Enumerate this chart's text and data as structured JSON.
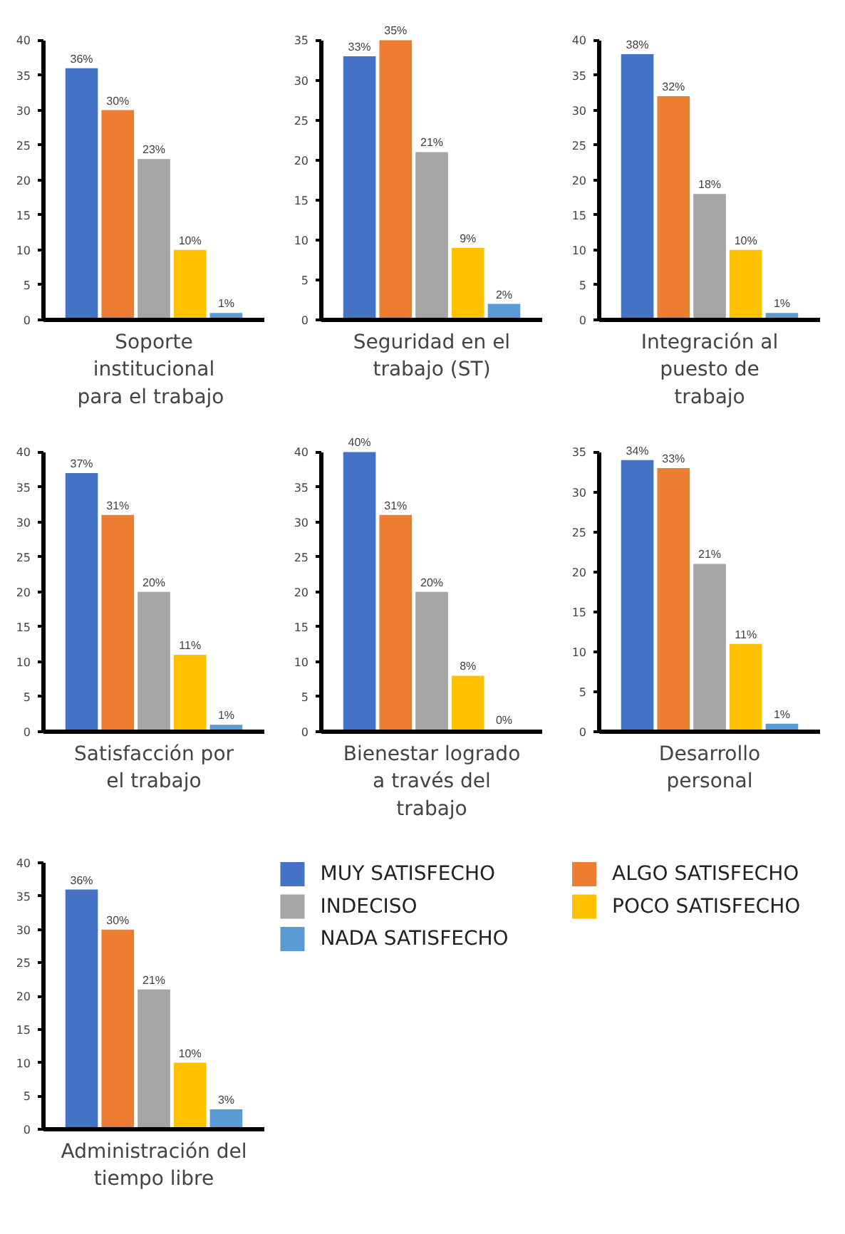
{
  "chart_data": [
    {
      "type": "bar",
      "xlabel": "Soporte\ninstitucional\npara  el trabajo",
      "categories": [
        null
      ],
      "ylim": [
        0,
        40
      ],
      "yticks": [
        0,
        5,
        10,
        15,
        20,
        25,
        30,
        35,
        40
      ],
      "legend": false,
      "series": [
        {
          "color": "#4472c4",
          "values": [
            36
          ],
          "value_labels": [
            "36%"
          ]
        },
        {
          "color": "#ed7d31",
          "values": [
            30
          ],
          "value_labels": [
            "30%"
          ]
        },
        {
          "color": "#a5a5a5",
          "values": [
            23
          ],
          "value_labels": [
            "23%"
          ]
        },
        {
          "color": "#ffc000",
          "values": [
            10
          ],
          "value_labels": [
            "10%"
          ]
        },
        {
          "color": "#5b9bd5",
          "values": [
            1
          ],
          "value_labels": [
            "1%"
          ]
        }
      ]
    },
    {
      "type": "bar",
      "xlabel": "Seguridad en el\ntrabajo (ST)",
      "categories": [
        null
      ],
      "ylim": [
        0,
        35
      ],
      "yticks": [
        0,
        5,
        10,
        15,
        20,
        25,
        30,
        35
      ],
      "legend": false,
      "series": [
        {
          "color": "#4472c4",
          "values": [
            33
          ],
          "value_labels": [
            "33%"
          ]
        },
        {
          "color": "#ed7d31",
          "values": [
            35
          ],
          "value_labels": [
            "35%"
          ]
        },
        {
          "color": "#a5a5a5",
          "values": [
            21
          ],
          "value_labels": [
            "21%"
          ]
        },
        {
          "color": "#ffc000",
          "values": [
            9
          ],
          "value_labels": [
            "9%"
          ]
        },
        {
          "color": "#5b9bd5",
          "values": [
            2
          ],
          "value_labels": [
            "2%"
          ]
        }
      ]
    },
    {
      "type": "bar",
      "xlabel": "Integración al\npuesto de\ntrabajo",
      "categories": [
        null
      ],
      "ylim": [
        0,
        40
      ],
      "yticks": [
        0,
        5,
        10,
        15,
        20,
        25,
        30,
        35,
        40
      ],
      "legend": false,
      "series": [
        {
          "color": "#4472c4",
          "values": [
            38
          ],
          "value_labels": [
            "38%"
          ]
        },
        {
          "color": "#ed7d31",
          "values": [
            32
          ],
          "value_labels": [
            "32%"
          ]
        },
        {
          "color": "#a5a5a5",
          "values": [
            18
          ],
          "value_labels": [
            "18%"
          ]
        },
        {
          "color": "#ffc000",
          "values": [
            10
          ],
          "value_labels": [
            "10%"
          ]
        },
        {
          "color": "#5b9bd5",
          "values": [
            1
          ],
          "value_labels": [
            "1%"
          ]
        }
      ]
    },
    {
      "type": "bar",
      "xlabel": "Satisfacción por\nel trabajo",
      "categories": [
        null
      ],
      "ylim": [
        0,
        40
      ],
      "yticks": [
        0,
        5,
        10,
        15,
        20,
        25,
        30,
        35,
        40
      ],
      "legend": false,
      "series": [
        {
          "color": "#4472c4",
          "values": [
            37
          ],
          "value_labels": [
            "37%"
          ]
        },
        {
          "color": "#ed7d31",
          "values": [
            31
          ],
          "value_labels": [
            "31%"
          ]
        },
        {
          "color": "#a5a5a5",
          "values": [
            20
          ],
          "value_labels": [
            "20%"
          ]
        },
        {
          "color": "#ffc000",
          "values": [
            11
          ],
          "value_labels": [
            "11%"
          ]
        },
        {
          "color": "#5b9bd5",
          "values": [
            1
          ],
          "value_labels": [
            "1%"
          ]
        }
      ]
    },
    {
      "type": "bar",
      "xlabel": "Bienestar logrado\na través del\ntrabajo",
      "categories": [
        null
      ],
      "ylim": [
        0,
        40
      ],
      "yticks": [
        0,
        5,
        10,
        15,
        20,
        25,
        30,
        35,
        40
      ],
      "legend": false,
      "series": [
        {
          "color": "#4472c4",
          "values": [
            40
          ],
          "value_labels": [
            "40%"
          ]
        },
        {
          "color": "#ed7d31",
          "values": [
            31
          ],
          "value_labels": [
            "31%"
          ]
        },
        {
          "color": "#a5a5a5",
          "values": [
            20
          ],
          "value_labels": [
            "20%"
          ]
        },
        {
          "color": "#ffc000",
          "values": [
            8
          ],
          "value_labels": [
            "8%"
          ]
        },
        {
          "color": "#5b9bd5",
          "values": [
            0.3
          ],
          "value_labels": [
            "0%"
          ]
        }
      ]
    },
    {
      "type": "bar",
      "xlabel": "Desarrollo\npersonal",
      "categories": [
        null
      ],
      "ylim": [
        0,
        35
      ],
      "yticks": [
        0,
        5,
        10,
        15,
        20,
        25,
        30,
        35
      ],
      "legend": false,
      "series": [
        {
          "color": "#4472c4",
          "values": [
            34
          ],
          "value_labels": [
            "34%"
          ]
        },
        {
          "color": "#ed7d31",
          "values": [
            33
          ],
          "value_labels": [
            "33%"
          ]
        },
        {
          "color": "#a5a5a5",
          "values": [
            21
          ],
          "value_labels": [
            "21%"
          ]
        },
        {
          "color": "#ffc000",
          "values": [
            11
          ],
          "value_labels": [
            "11%"
          ]
        },
        {
          "color": "#5b9bd5",
          "values": [
            1
          ],
          "value_labels": [
            "1%"
          ]
        }
      ]
    },
    {
      "type": "bar",
      "xlabel": "Administración del\ntiempo libre",
      "categories": [
        null
      ],
      "ylim": [
        0,
        40
      ],
      "yticks": [
        0,
        5,
        10,
        15,
        20,
        25,
        30,
        35,
        40
      ],
      "legend": "right",
      "series": [
        {
          "name": "MUY SATISFECHO",
          "color": "#4472c4",
          "values": [
            36
          ],
          "value_labels": [
            "36%"
          ]
        },
        {
          "name": "ALGO SATISFECHO",
          "color": "#ed7d31",
          "values": [
            30
          ],
          "value_labels": [
            "30%"
          ]
        },
        {
          "name": "INDECISO",
          "color": "#a5a5a5",
          "values": [
            21
          ],
          "value_labels": [
            "21%"
          ]
        },
        {
          "name": "POCO SATISFECHO",
          "color": "#ffc000",
          "values": [
            10
          ],
          "value_labels": [
            "10%"
          ]
        },
        {
          "name": "NADA SATISFECHO",
          "color": "#5b9bd5",
          "values": [
            3
          ],
          "value_labels": [
            "3%"
          ]
        }
      ]
    }
  ]
}
